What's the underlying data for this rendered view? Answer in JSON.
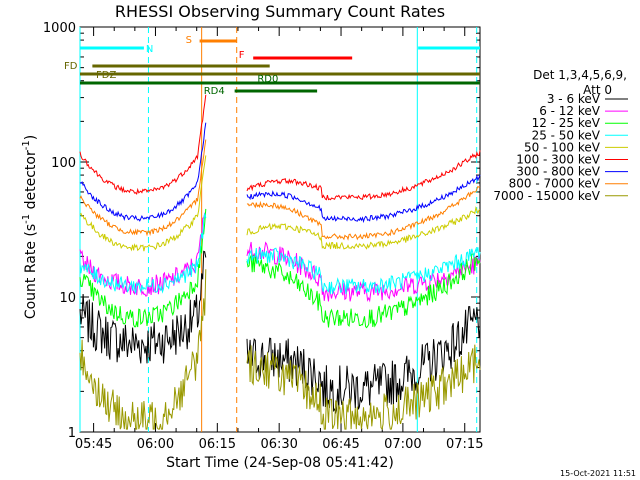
{
  "chart_data": {
    "type": "line",
    "title": "RHESSI Observing Summary Count Rates",
    "xlabel": "Start Time (24-Sep-08 05:41:42)",
    "ylabel_parts": [
      "Count Rate (s",
      "-1",
      " detector",
      "-1",
      ")"
    ],
    "yscale": "log",
    "ylim": [
      1,
      1000
    ],
    "xlim_minutes_after_0541": [
      0,
      97
    ],
    "y_ticks": [
      {
        "value": 1,
        "label": "1"
      },
      {
        "value": 10,
        "label": "10"
      },
      {
        "value": 100,
        "label": "100"
      },
      {
        "value": 1000,
        "label": "1000"
      }
    ],
    "x_ticks": [
      {
        "t": 3.3,
        "label": "05:45"
      },
      {
        "t": 18.3,
        "label": "06:00"
      },
      {
        "t": 33.3,
        "label": "06:15"
      },
      {
        "t": 48.3,
        "label": "06:30"
      },
      {
        "t": 63.3,
        "label": "06:45"
      },
      {
        "t": 78.3,
        "label": "07:00"
      },
      {
        "t": 93.3,
        "label": "07:15"
      }
    ],
    "legend_header": [
      "Det 1,3,4,5,6,9,",
      "Att 0"
    ],
    "legend_position": "right",
    "series": [
      {
        "name": "3 - 6 keV",
        "color": "#000000",
        "start": 8,
        "end": 7,
        "min_a": 4.5,
        "min_b": 2.1,
        "seg2_start": 3.5,
        "noise": 0.35
      },
      {
        "name": "6 - 12 keV",
        "color": "#ff00ff",
        "start": 20,
        "end": 18,
        "min_a": 12,
        "min_b": 11,
        "seg2_start": 22,
        "noise": 0.15
      },
      {
        "name": "12 - 25 keV",
        "color": "#00ff00",
        "start": 16,
        "end": 20,
        "min_a": 7,
        "min_b": 7,
        "seg2_start": 18,
        "noise": 0.15
      },
      {
        "name": "25 - 50 keV",
        "color": "#00ffff",
        "start": 18,
        "end": 22,
        "min_a": 12,
        "min_b": 12,
        "seg2_start": 20,
        "noise": 0.12
      },
      {
        "name": "50 - 100 keV",
        "color": "#cccc00",
        "start": 45,
        "end": 45,
        "min_a": 23,
        "min_b": 24,
        "seg2_start": 30,
        "noise": 0.05
      },
      {
        "name": "100 - 300 keV",
        "color": "#ff0000",
        "start": 125,
        "end": 118,
        "min_a": 60,
        "min_b": 55,
        "seg2_start": 63,
        "noise": 0.04
      },
      {
        "name": "300 - 800 keV",
        "color": "#0000ff",
        "start": 78,
        "end": 78,
        "min_a": 38,
        "min_b": 38,
        "seg2_start": 55,
        "noise": 0.04
      },
      {
        "name": "800 - 7000 keV",
        "color": "#ff7f00",
        "start": 60,
        "end": 65,
        "min_a": 30,
        "min_b": 28,
        "seg2_start": 48,
        "noise": 0.04
      },
      {
        "name": "7000 - 15000 keV",
        "color": "#999900",
        "start": 4.5,
        "end": 3.5,
        "min_a": 1.2,
        "min_b": 1.3,
        "seg2_start": 3.2,
        "noise": 0.3
      }
    ],
    "flags": [
      {
        "label": "N",
        "color": "#00ffff",
        "segments": [
          [
            0,
            15.5
          ],
          [
            82,
            97
          ]
        ],
        "row": 0
      },
      {
        "label": "S",
        "color": "#ff7f00",
        "segments": [
          [
            29,
            38
          ]
        ],
        "row": -1
      },
      {
        "label": "F",
        "color": "#ff0000",
        "segments": [
          [
            42,
            66
          ]
        ],
        "row": 1
      },
      {
        "label": "FD",
        "color": "#666600",
        "segments": [
          [
            3,
            46
          ]
        ],
        "row": 2
      },
      {
        "label": "FDZ",
        "color": "#666600",
        "segments": [
          [
            0,
            50
          ],
          [
            46,
            97
          ]
        ],
        "row": 3
      },
      {
        "label": "RD0",
        "color": "#006600",
        "segments": [
          [
            0,
            97
          ]
        ],
        "row": 4
      },
      {
        "label": "RD4",
        "color": "#006600",
        "segments": [
          [
            37.5,
            57.5
          ]
        ],
        "row": 5
      }
    ],
    "vertical_markers": [
      {
        "t": 0,
        "color": "#00ffff",
        "style": "solid"
      },
      {
        "t": 16.6,
        "color": "#00ffff",
        "style": "dashed"
      },
      {
        "t": 29.5,
        "color": "#ff7f00",
        "style": "solid"
      },
      {
        "t": 38.0,
        "color": "#ff7f00",
        "style": "dashed"
      },
      {
        "t": 81.8,
        "color": "#00ffff",
        "style": "solid"
      },
      {
        "t": 96.2,
        "color": "#00ffff",
        "style": "dashed"
      }
    ],
    "data_gap_minutes": [
      30.5,
      40.5
    ],
    "footer_timestamp": "15-Oct-2021 11:51"
  }
}
